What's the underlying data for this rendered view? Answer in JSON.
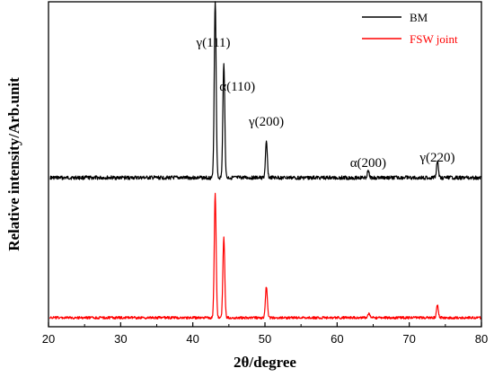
{
  "chart_data": {
    "type": "line",
    "xlabel": "2θ/degree",
    "ylabel": "Relative intensity/Arb.unit",
    "xlim": [
      20,
      80
    ],
    "xticks": [
      "20",
      "30",
      "40",
      "50",
      "60",
      "70",
      "80"
    ],
    "grid": false,
    "legend": {
      "placement": "top-right",
      "entries": [
        "BM",
        "FSW joint"
      ]
    },
    "series": [
      {
        "name": "BM",
        "color": "#000000",
        "baseline": 0.0,
        "peaks": [
          {
            "x": 43.1,
            "height": 0.86
          },
          {
            "x": 44.3,
            "height": 0.56
          },
          {
            "x": 50.2,
            "height": 0.17
          },
          {
            "x": 64.3,
            "height": 0.03
          },
          {
            "x": 73.9,
            "height": 0.08
          }
        ]
      },
      {
        "name": "FSW joint",
        "color": "#ff0000",
        "baseline": 0.0,
        "peaks": [
          {
            "x": 43.1,
            "height": 0.86
          },
          {
            "x": 44.3,
            "height": 0.56
          },
          {
            "x": 50.2,
            "height": 0.22
          },
          {
            "x": 64.4,
            "height": 0.03
          },
          {
            "x": 73.9,
            "height": 0.09
          }
        ]
      }
    ],
    "annotations": [
      {
        "text": "γ(111)",
        "x": 43.1,
        "series": "BM"
      },
      {
        "text": "α(110)",
        "x": 44.3,
        "series": "BM"
      },
      {
        "text": "γ(200)",
        "x": 50.2,
        "series": "BM"
      },
      {
        "text": "α(200)",
        "x": 64.3,
        "series": "BM"
      },
      {
        "text": "γ(220)",
        "x": 73.9,
        "series": "BM"
      }
    ]
  }
}
